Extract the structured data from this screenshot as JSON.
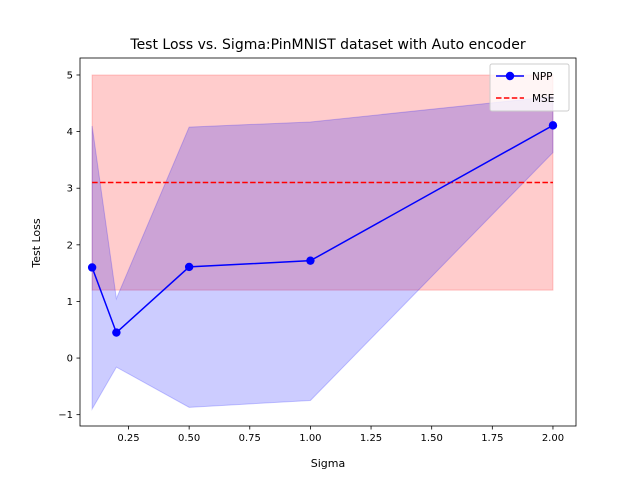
{
  "chart_data": {
    "type": "line",
    "title": "Test Loss vs. Sigma:PinMNIST dataset with Auto encoder",
    "xlabel": "Sigma",
    "ylabel": "Test Loss",
    "xlim": [
      0.05,
      2.095
    ],
    "ylim": [
      -1.2,
      5.3
    ],
    "xticks": [
      0.25,
      0.5,
      0.75,
      1.0,
      1.25,
      1.5,
      1.75,
      2.0
    ],
    "xtick_labels": [
      "0.25",
      "0.50",
      "0.75",
      "1.00",
      "1.25",
      "1.50",
      "1.75",
      "2.00"
    ],
    "yticks": [
      -1,
      0,
      1,
      2,
      3,
      4,
      5
    ],
    "ytick_labels": [
      "−1",
      "0",
      "1",
      "2",
      "3",
      "4",
      "5"
    ],
    "legend_position": "top-right",
    "grid": false,
    "series": [
      {
        "name": "NPP",
        "style": "line-marker",
        "color": "#0000ff",
        "x": [
          0.1,
          0.2,
          0.5,
          1.0,
          2.0
        ],
        "values": [
          1.6,
          0.45,
          1.61,
          1.72,
          4.11
        ],
        "band_upper": [
          4.1,
          1.05,
          4.08,
          4.17,
          4.62
        ],
        "band_lower": [
          -0.9,
          -0.16,
          -0.87,
          -0.75,
          3.63
        ],
        "band_color": "#0000ff"
      },
      {
        "name": "MSE",
        "style": "dashed",
        "color": "#ff0000",
        "x": [
          0.1,
          2.0
        ],
        "values": [
          3.1,
          3.1
        ],
        "band_upper": [
          5.0,
          5.0
        ],
        "band_lower": [
          1.2,
          1.2
        ],
        "band_color": "#ff0000"
      }
    ]
  }
}
